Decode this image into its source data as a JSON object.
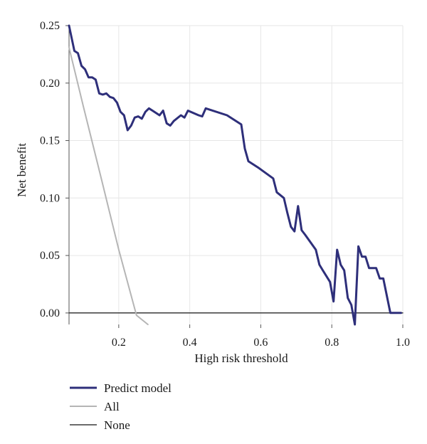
{
  "chart_data": {
    "type": "line",
    "xlabel": "High risk threshold",
    "ylabel": "Net benefit",
    "xlim": [
      0.06,
      1.0
    ],
    "ylim": [
      -0.01,
      0.25
    ],
    "xticks": [
      "0.2",
      "0.4",
      "0.6",
      "0.8",
      "1.0"
    ],
    "xtick_values": [
      0.2,
      0.4,
      0.6,
      0.8,
      1.0
    ],
    "yticks": [
      "0.00",
      "0.05",
      "0.10",
      "0.15",
      "0.20",
      "0.25"
    ],
    "ytick_values": [
      0.0,
      0.05,
      0.1,
      0.15,
      0.2,
      0.25
    ],
    "grid": true,
    "legend_position": "bottom-left",
    "colors": {
      "predict_model": "#2e2f7a",
      "all": "#b5b5b5",
      "none": "#3a3a3a",
      "grid": "#e6e6e6",
      "axis": "#555555"
    },
    "series": [
      {
        "name": "Predict model",
        "x": [
          0.06,
          0.075,
          0.085,
          0.095,
          0.105,
          0.115,
          0.125,
          0.135,
          0.145,
          0.155,
          0.165,
          0.175,
          0.185,
          0.195,
          0.205,
          0.215,
          0.225,
          0.235,
          0.245,
          0.255,
          0.265,
          0.275,
          0.285,
          0.295,
          0.315,
          0.325,
          0.335,
          0.345,
          0.355,
          0.375,
          0.385,
          0.395,
          0.425,
          0.435,
          0.445,
          0.505,
          0.545,
          0.555,
          0.565,
          0.595,
          0.635,
          0.645,
          0.665,
          0.675,
          0.685,
          0.695,
          0.705,
          0.715,
          0.725,
          0.755,
          0.765,
          0.775,
          0.795,
          0.805,
          0.815,
          0.825,
          0.835,
          0.845,
          0.855,
          0.865,
          0.875,
          0.885,
          0.895,
          0.905,
          0.915,
          0.925,
          0.935,
          0.945,
          0.965,
          0.975,
          0.995
        ],
        "values": [
          0.25,
          0.228,
          0.226,
          0.215,
          0.212,
          0.205,
          0.205,
          0.203,
          0.191,
          0.19,
          0.191,
          0.188,
          0.187,
          0.183,
          0.175,
          0.172,
          0.159,
          0.163,
          0.17,
          0.171,
          0.169,
          0.175,
          0.178,
          0.176,
          0.172,
          0.176,
          0.165,
          0.163,
          0.167,
          0.172,
          0.17,
          0.176,
          0.172,
          0.171,
          0.178,
          0.172,
          0.164,
          0.143,
          0.132,
          0.126,
          0.117,
          0.105,
          0.1,
          0.087,
          0.075,
          0.071,
          0.093,
          0.072,
          0.068,
          0.055,
          0.042,
          0.037,
          0.027,
          0.01,
          0.055,
          0.042,
          0.037,
          0.013,
          0.007,
          -0.01,
          0.058,
          0.049,
          0.049,
          0.039,
          0.039,
          0.039,
          0.03,
          0.03,
          0.0,
          0.0,
          0.0
        ]
      },
      {
        "name": "All",
        "x": [
          0.06,
          0.1,
          0.15,
          0.2,
          0.25,
          0.282
        ],
        "values": [
          0.231,
          0.18,
          0.118,
          0.055,
          -0.002,
          -0.01
        ]
      },
      {
        "name": "None",
        "x": [
          0.06,
          1.0
        ],
        "values": [
          0.0,
          0.0
        ]
      }
    ]
  }
}
